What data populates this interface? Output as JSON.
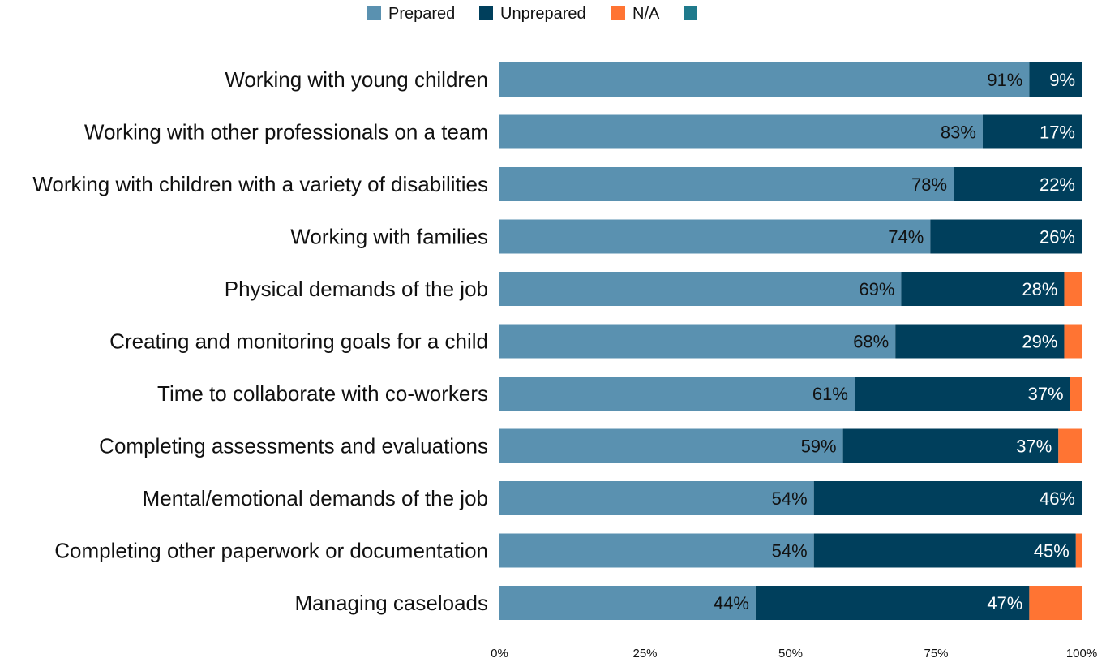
{
  "chart_data": {
    "type": "bar",
    "orientation": "horizontal",
    "stacked": true,
    "normalized": true,
    "title": "",
    "xlabel": "",
    "ylabel": "",
    "xlim": [
      0,
      100
    ],
    "x_ticks": [
      "0%",
      "25%",
      "50%",
      "75%",
      "100%"
    ],
    "grid": false,
    "legend_position": "top",
    "legend_entries": [
      "Prepared",
      "Unprepared",
      "N/A",
      ""
    ],
    "legend_colors": [
      "#5a91b0",
      "#003f5c",
      "#ff7433",
      "#1f7a8c"
    ],
    "categories": [
      "Working with young children",
      "Working with other professionals on a team",
      "Working with children with a variety of disabilities",
      "Working with families",
      "Physical demands of the job",
      "Creating and monitoring goals for a child",
      "Time to collaborate with co-workers",
      "Completing assessments and evaluations",
      "Mental/emotional demands of the job",
      "Completing other paperwork or documentation",
      "Managing caseloads"
    ],
    "series": [
      {
        "name": "Prepared",
        "color": "#5a91b0",
        "label_color": "#111111",
        "values": [
          91,
          83,
          78,
          74,
          69,
          68,
          61,
          59,
          54,
          54,
          44
        ],
        "labels": [
          "91%",
          "83%",
          "78%",
          "74%",
          "69%",
          "68%",
          "61%",
          "59%",
          "54%",
          "54%",
          "44%"
        ]
      },
      {
        "name": "Unprepared",
        "color": "#003f5c",
        "label_color": "#ffffff",
        "values": [
          9,
          17,
          22,
          26,
          28,
          29,
          37,
          37,
          46,
          45,
          47
        ],
        "labels": [
          "9%",
          "17%",
          "22%",
          "26%",
          "28%",
          "29%",
          "37%",
          "37%",
          "46%",
          "45%",
          "47%"
        ]
      },
      {
        "name": "N/A",
        "color": "#ff7433",
        "label_color": "#111111",
        "values": [
          0,
          0,
          0,
          0,
          2,
          3,
          2,
          4,
          0.8,
          1.8,
          9
        ],
        "labels": [
          "",
          "",
          "",
          "",
          "",
          "",
          "",
          "",
          "",
          "",
          ""
        ]
      }
    ]
  }
}
